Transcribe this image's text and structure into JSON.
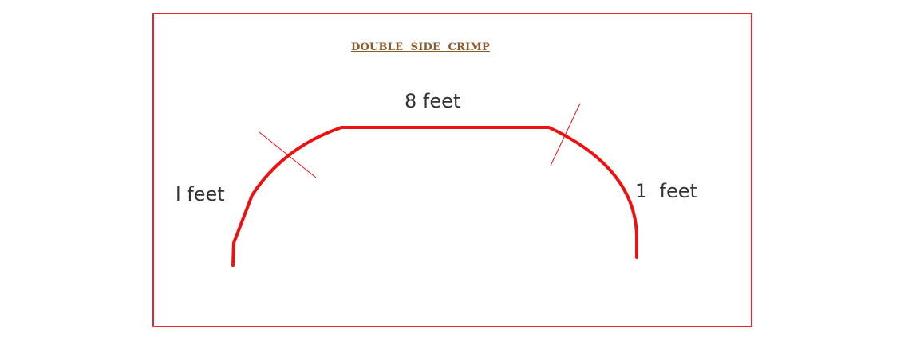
{
  "title": "DOUBLE  SIDE  CRIMP",
  "labels": {
    "top_section": "8 feet",
    "left_section": "l feet",
    "right_section": "1  feet"
  },
  "colors": {
    "profile_line": "#ee1111",
    "border": "#e8262b",
    "title": "#8b5a2b",
    "label_text": "#333333"
  }
}
